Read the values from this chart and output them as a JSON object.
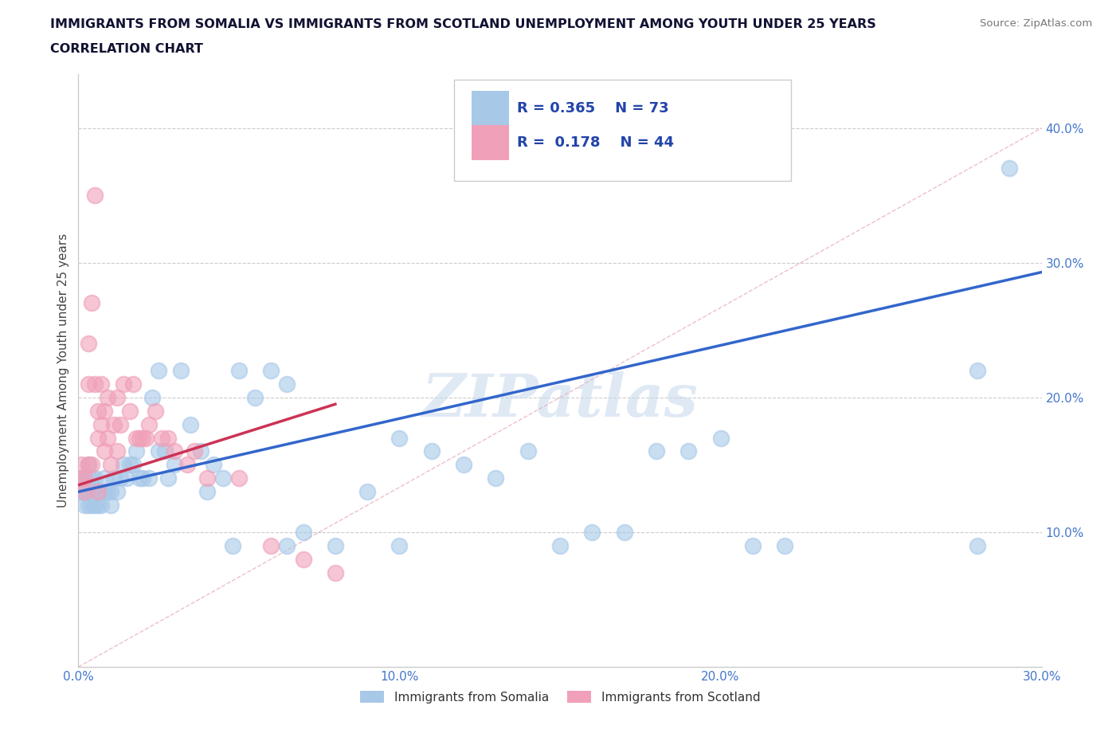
{
  "title_line1": "IMMIGRANTS FROM SOMALIA VS IMMIGRANTS FROM SCOTLAND UNEMPLOYMENT AMONG YOUTH UNDER 25 YEARS",
  "title_line2": "CORRELATION CHART",
  "source": "Source: ZipAtlas.com",
  "ylabel": "Unemployment Among Youth under 25 years",
  "xlim": [
    0.0,
    0.3
  ],
  "ylim": [
    0.0,
    0.44
  ],
  "ytick_values": [
    0.1,
    0.2,
    0.3,
    0.4
  ],
  "ytick_labels": [
    "10.0%",
    "20.0%",
    "30.0%",
    "40.0%"
  ],
  "xtick_values": [
    0.0,
    0.05,
    0.1,
    0.15,
    0.2,
    0.25,
    0.3
  ],
  "xtick_labels": [
    "0.0%",
    "",
    "10.0%",
    "",
    "20.0%",
    "",
    "30.0%"
  ],
  "somalia_color": "#a8c8e8",
  "scotland_color": "#f0a0b8",
  "somalia_R": 0.365,
  "somalia_N": 73,
  "scotland_R": 0.178,
  "scotland_N": 44,
  "somalia_trend_color": "#3366cc",
  "scotland_trend_color": "#cc3355",
  "somalia_trend_x": [
    0.0,
    0.3
  ],
  "somalia_trend_y": [
    0.13,
    0.293
  ],
  "scotland_trend_x": [
    0.0,
    0.08
  ],
  "scotland_trend_y": [
    0.135,
    0.195
  ],
  "ref_line_x": [
    0.0,
    0.3
  ],
  "ref_line_y": [
    0.0,
    0.4
  ],
  "watermark": "ZIPatlas",
  "somalia_x": [
    0.001,
    0.001,
    0.002,
    0.002,
    0.002,
    0.003,
    0.003,
    0.003,
    0.003,
    0.004,
    0.004,
    0.004,
    0.005,
    0.005,
    0.005,
    0.006,
    0.006,
    0.007,
    0.007,
    0.008,
    0.008,
    0.009,
    0.01,
    0.01,
    0.011,
    0.012,
    0.013,
    0.014,
    0.015,
    0.016,
    0.017,
    0.018,
    0.019,
    0.02,
    0.022,
    0.023,
    0.025,
    0.025,
    0.027,
    0.028,
    0.03,
    0.032,
    0.035,
    0.038,
    0.04,
    0.042,
    0.045,
    0.048,
    0.05,
    0.055,
    0.06,
    0.065,
    0.065,
    0.07,
    0.08,
    0.09,
    0.1,
    0.1,
    0.11,
    0.12,
    0.13,
    0.14,
    0.15,
    0.16,
    0.17,
    0.18,
    0.19,
    0.2,
    0.21,
    0.22,
    0.28,
    0.28,
    0.29
  ],
  "somalia_y": [
    0.13,
    0.14,
    0.12,
    0.13,
    0.14,
    0.12,
    0.13,
    0.14,
    0.15,
    0.12,
    0.13,
    0.14,
    0.12,
    0.13,
    0.14,
    0.12,
    0.13,
    0.12,
    0.13,
    0.13,
    0.14,
    0.13,
    0.12,
    0.13,
    0.14,
    0.13,
    0.14,
    0.15,
    0.14,
    0.15,
    0.15,
    0.16,
    0.14,
    0.14,
    0.14,
    0.2,
    0.16,
    0.22,
    0.16,
    0.14,
    0.15,
    0.22,
    0.18,
    0.16,
    0.13,
    0.15,
    0.14,
    0.09,
    0.22,
    0.2,
    0.22,
    0.09,
    0.21,
    0.1,
    0.09,
    0.13,
    0.17,
    0.09,
    0.16,
    0.15,
    0.14,
    0.16,
    0.09,
    0.1,
    0.1,
    0.16,
    0.16,
    0.17,
    0.09,
    0.09,
    0.22,
    0.09,
    0.37
  ],
  "scotland_x": [
    0.001,
    0.001,
    0.002,
    0.002,
    0.003,
    0.003,
    0.003,
    0.004,
    0.004,
    0.005,
    0.005,
    0.006,
    0.006,
    0.006,
    0.007,
    0.007,
    0.008,
    0.008,
    0.009,
    0.009,
    0.01,
    0.011,
    0.012,
    0.012,
    0.013,
    0.014,
    0.016,
    0.017,
    0.018,
    0.019,
    0.02,
    0.021,
    0.022,
    0.024,
    0.026,
    0.028,
    0.03,
    0.034,
    0.036,
    0.04,
    0.05,
    0.06,
    0.07,
    0.08
  ],
  "scotland_y": [
    0.14,
    0.15,
    0.13,
    0.14,
    0.15,
    0.21,
    0.24,
    0.15,
    0.27,
    0.21,
    0.35,
    0.13,
    0.17,
    0.19,
    0.18,
    0.21,
    0.16,
    0.19,
    0.17,
    0.2,
    0.15,
    0.18,
    0.16,
    0.2,
    0.18,
    0.21,
    0.19,
    0.21,
    0.17,
    0.17,
    0.17,
    0.17,
    0.18,
    0.19,
    0.17,
    0.17,
    0.16,
    0.15,
    0.16,
    0.14,
    0.14,
    0.09,
    0.08,
    0.07
  ]
}
